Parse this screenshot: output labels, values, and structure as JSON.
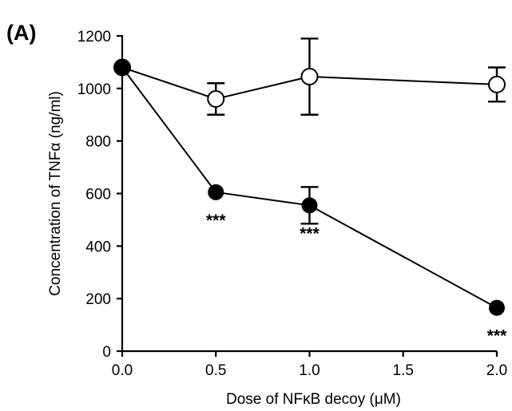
{
  "panel_label": "(A)",
  "chart_data": {
    "type": "line",
    "xlabel": "Dose of NFκB decoy (μM)",
    "ylabel": "Concentration of TNFα (ng/ml)",
    "xlim": [
      0,
      2.0
    ],
    "ylim": [
      0,
      1200
    ],
    "x_ticks": [
      "0.0",
      "0.5",
      "1.0",
      "1.5",
      "2.0"
    ],
    "x_tick_values": [
      0,
      0.5,
      1.0,
      1.5,
      2.0
    ],
    "y_ticks": [
      "0",
      "200",
      "400",
      "600",
      "800",
      "1000",
      "1200"
    ],
    "y_tick_values": [
      0,
      200,
      400,
      600,
      800,
      1000,
      1200
    ],
    "grid": false,
    "series": [
      {
        "marker": "open-circle",
        "color": "#000000",
        "x": [
          0,
          0.5,
          1.0,
          2.0
        ],
        "y": [
          1080,
          960,
          1045,
          1015
        ],
        "error": [
          0,
          60,
          145,
          65
        ]
      },
      {
        "marker": "filled-circle",
        "color": "#000000",
        "x": [
          0,
          0.5,
          1.0,
          2.0
        ],
        "y": [
          1080,
          605,
          555,
          165
        ],
        "error": [
          0,
          0,
          70,
          0
        ]
      }
    ],
    "annotations": [
      {
        "x": 0.5,
        "y": 605,
        "text": "***"
      },
      {
        "x": 1.0,
        "y": 555,
        "text": "***"
      },
      {
        "x": 2.0,
        "y": 165,
        "text": "***"
      }
    ]
  }
}
